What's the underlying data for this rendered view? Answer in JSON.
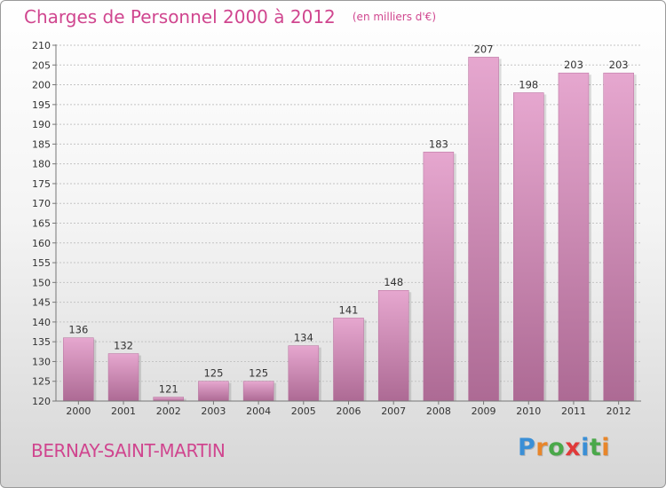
{
  "chart_data": {
    "type": "bar",
    "title": "Charges de Personnel 2000 à 2012",
    "subtitle": "(en milliers d'€)",
    "categories": [
      "2000",
      "2001",
      "2002",
      "2003",
      "2004",
      "2005",
      "2006",
      "2007",
      "2008",
      "2009",
      "2010",
      "2011",
      "2012"
    ],
    "values": [
      136,
      132,
      121,
      125,
      125,
      134,
      141,
      148,
      183,
      207,
      198,
      203,
      203
    ],
    "ylim": [
      120,
      210
    ],
    "yticks": [
      120,
      125,
      130,
      135,
      140,
      145,
      150,
      155,
      160,
      165,
      170,
      175,
      180,
      185,
      190,
      195,
      200,
      205,
      210
    ],
    "grid": true,
    "bar_color": "#d98fbd",
    "title_color": "#d0468f"
  },
  "footer": {
    "place": "BERNAY-SAINT-MARTIN",
    "brand": "Proxiti"
  }
}
